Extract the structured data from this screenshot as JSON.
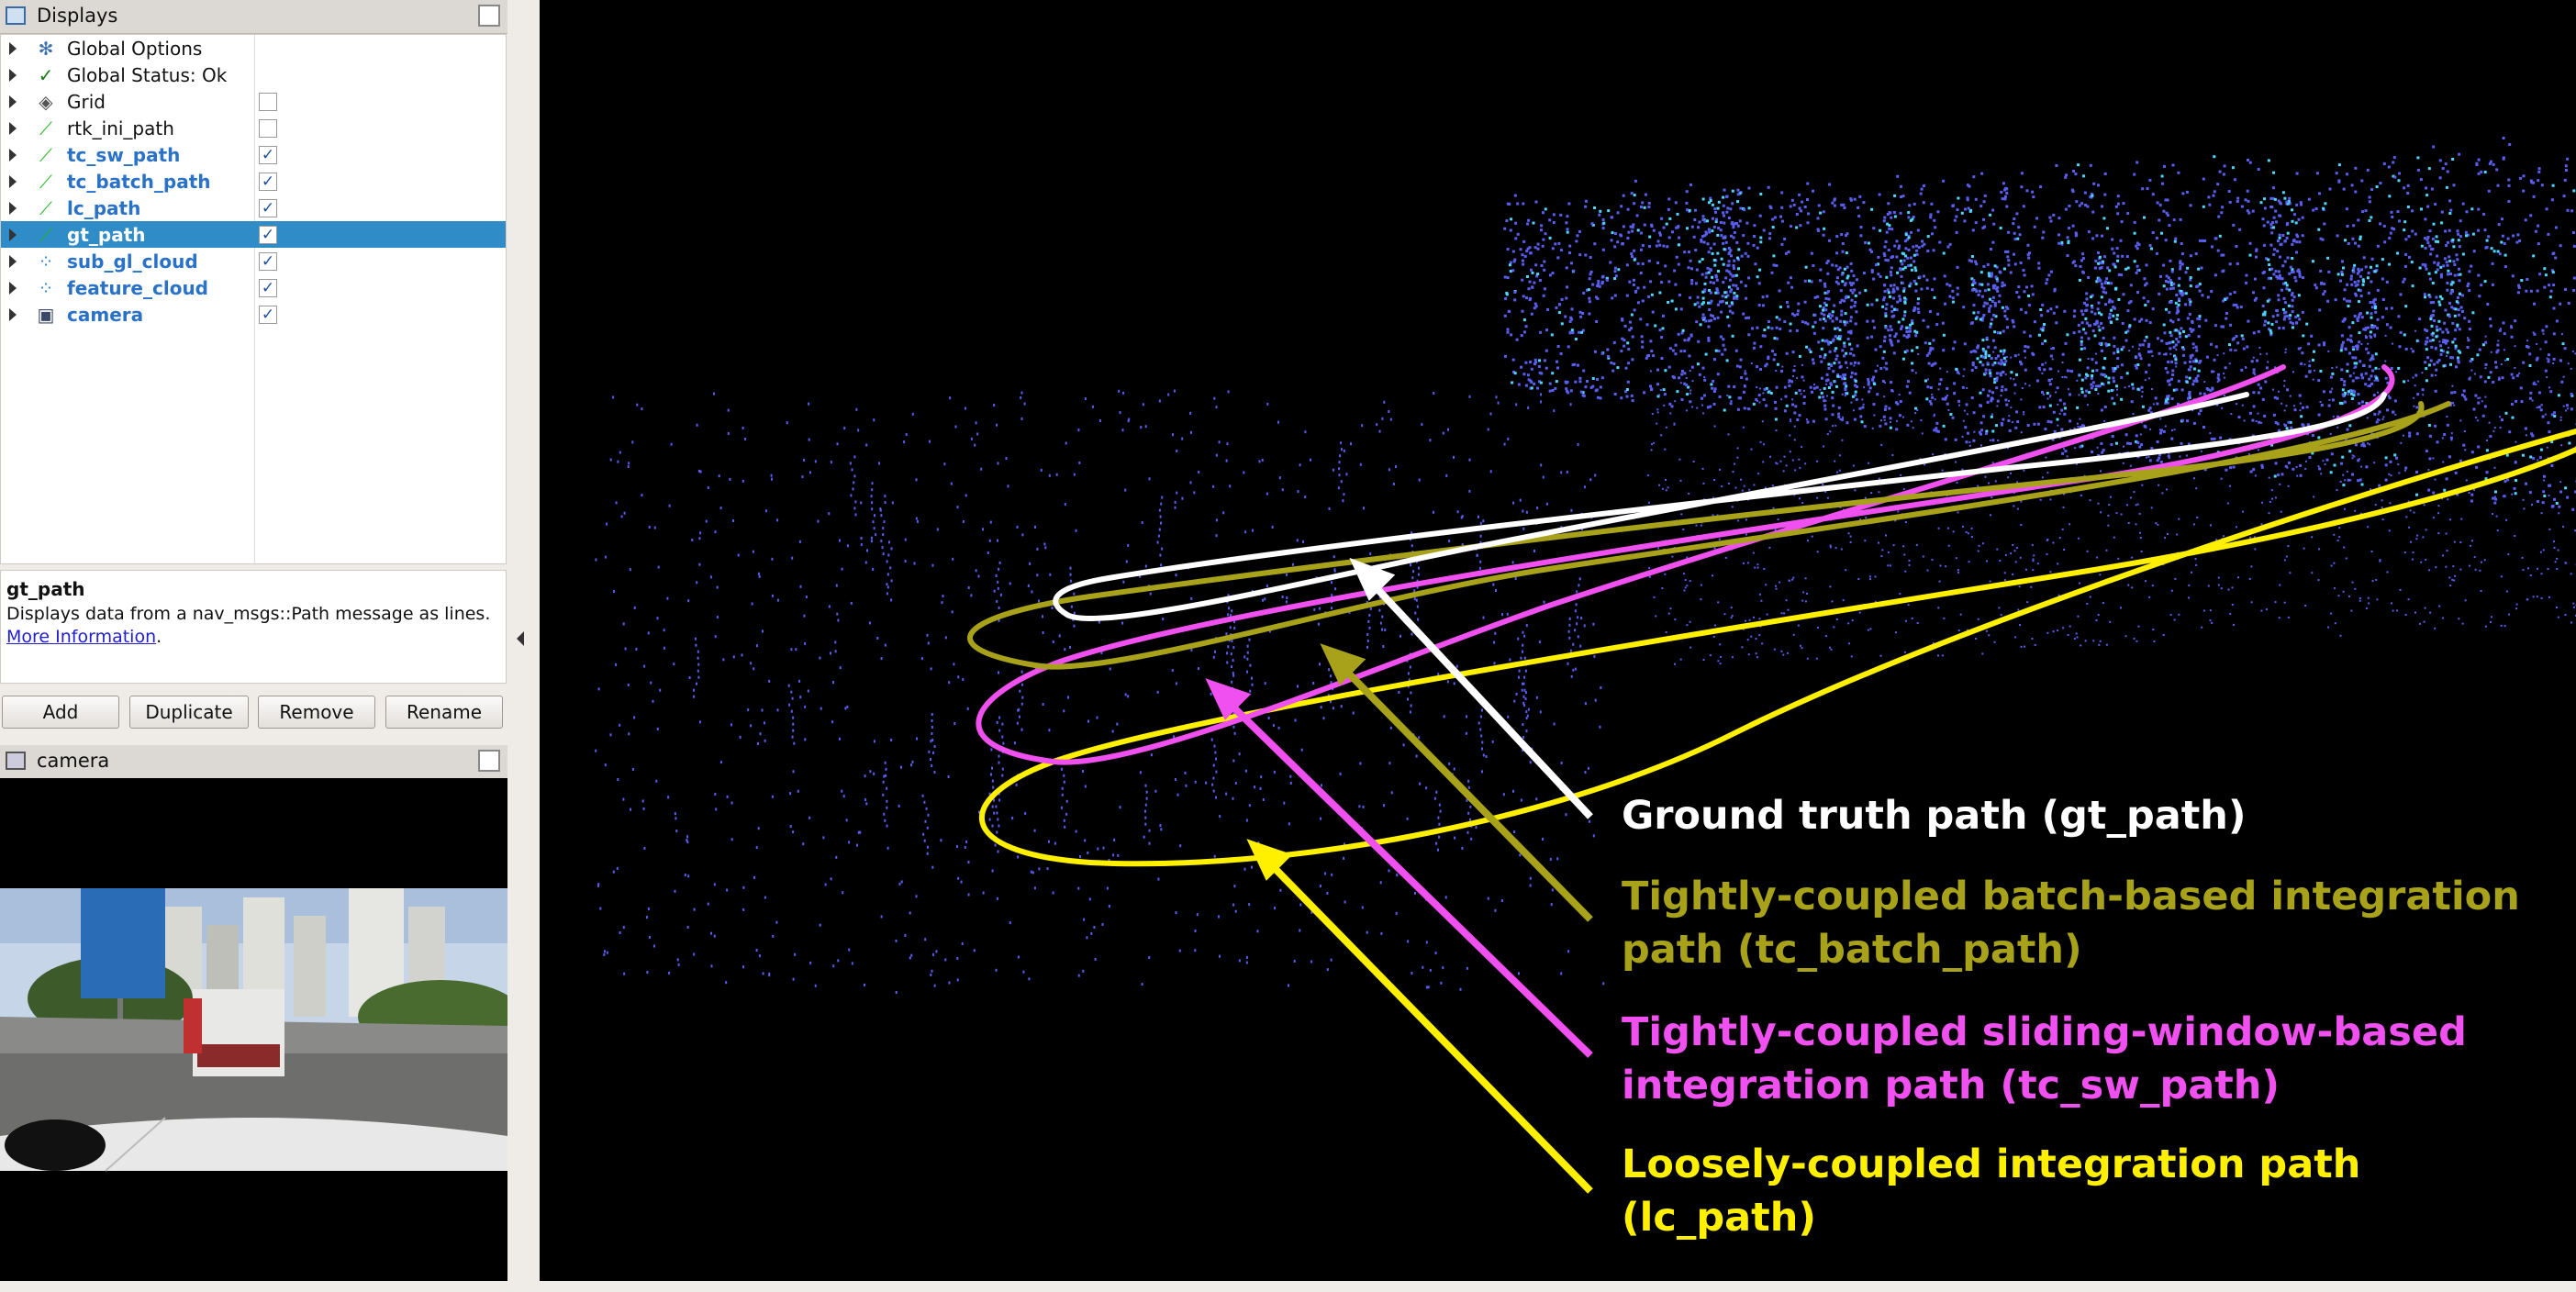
{
  "displays_panel": {
    "title": "Displays",
    "items": [
      {
        "label": "Global Options",
        "icon": "gear-icon",
        "checkbox": null,
        "bold": false
      },
      {
        "label": "Global Status: Ok",
        "icon": "checkmark-icon",
        "checkbox": null,
        "bold": false
      },
      {
        "label": "Grid",
        "icon": "grid-icon",
        "checkbox": false,
        "bold": false
      },
      {
        "label": "rtk_ini_path",
        "icon": "path-icon",
        "checkbox": false,
        "bold": false
      },
      {
        "label": "tc_sw_path",
        "icon": "path-icon",
        "checkbox": true,
        "bold": true
      },
      {
        "label": "tc_batch_path",
        "icon": "path-icon",
        "checkbox": true,
        "bold": true
      },
      {
        "label": "lc_path",
        "icon": "path-icon",
        "checkbox": true,
        "bold": true
      },
      {
        "label": "gt_path",
        "icon": "path-icon",
        "checkbox": true,
        "bold": true,
        "selected": true
      },
      {
        "label": "sub_gl_cloud",
        "icon": "pointcloud-icon",
        "checkbox": true,
        "bold": true
      },
      {
        "label": "feature_cloud",
        "icon": "pointcloud-icon",
        "checkbox": true,
        "bold": true
      },
      {
        "label": "camera",
        "icon": "camera-icon",
        "checkbox": true,
        "bold": true
      }
    ]
  },
  "description": {
    "title": "gt_path",
    "text": "Displays data from a nav_msgs::Path message as lines.",
    "link": "More Information",
    "trail": "."
  },
  "buttons": {
    "add": "Add",
    "duplicate": "Duplicate",
    "remove": "Remove",
    "rename": "Rename"
  },
  "camera_panel": {
    "title": "camera"
  },
  "legend": {
    "gt": {
      "text": "Ground truth path (gt_path)",
      "color": "#ffffff"
    },
    "tc_batch": {
      "line1": "Tightly-coupled batch-based integration",
      "line2": "path (tc_batch_path)",
      "color": "#a8a21a"
    },
    "tc_sw": {
      "line1": "Tightly-coupled  sliding-window-based",
      "line2": "integration path (tc_sw_path)",
      "color": "#f050f0"
    },
    "lc": {
      "line1": "Loosely-coupled  integration  path",
      "line2": "(lc_path)",
      "color": "#fff000"
    }
  },
  "colors": {
    "selection": "#308cc6",
    "cloud": "#5a5ef0",
    "cloud_highlight": "#4fd6ff"
  }
}
